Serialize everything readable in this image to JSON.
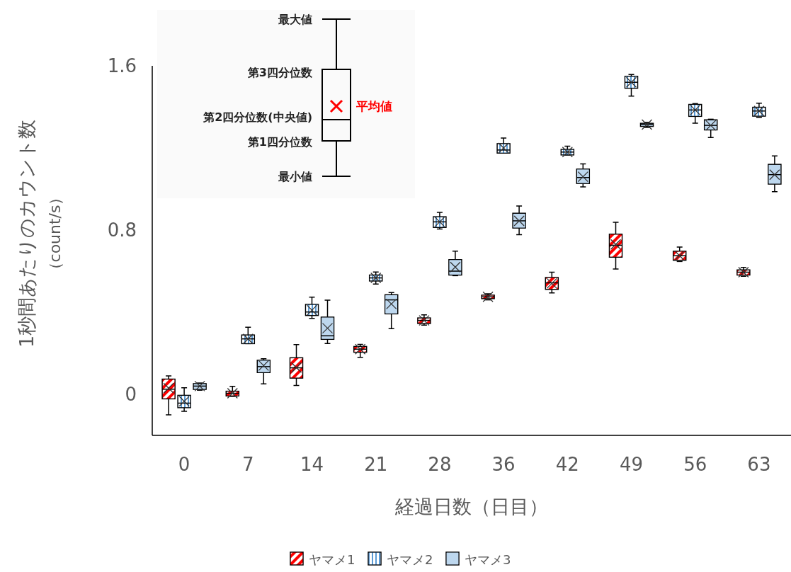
{
  "chart_data": {
    "type": "box",
    "xlabel": "経過日数（日目）",
    "ylabel": "1秒間あたりのカウント数（count/s）",
    "categories": [
      "0",
      "7",
      "14",
      "21",
      "28",
      "36",
      "42",
      "49",
      "56",
      "63"
    ],
    "ylim": [
      -0.2,
      1.6
    ],
    "yticks": [
      0,
      0.8,
      1.6
    ],
    "grid": false,
    "legend": "bottom",
    "annotations": [
      "最大値",
      "第3四分位数",
      "第2四分位数(中央値)",
      "第1四分位数",
      "最小値",
      "平均値"
    ],
    "series": [
      {
        "name": "ヤマメ1",
        "color": "#ff0000",
        "boxes": [
          {
            "low": -0.1,
            "q1": -0.022,
            "median": 0.025,
            "q3": 0.074,
            "high": 0.09,
            "mean": 0.03
          },
          {
            "low": -0.01,
            "q1": -0.008,
            "median": 0.005,
            "q3": 0.015,
            "high": 0.039,
            "mean": 0.005
          },
          {
            "low": 0.043,
            "q1": 0.079,
            "median": 0.129,
            "q3": 0.178,
            "high": 0.242,
            "mean": 0.13
          },
          {
            "low": 0.18,
            "q1": 0.205,
            "median": 0.22,
            "q3": 0.233,
            "high": 0.243,
            "mean": 0.22
          },
          {
            "low": 0.337,
            "q1": 0.345,
            "median": 0.36,
            "q3": 0.372,
            "high": 0.387,
            "mean": 0.36
          },
          {
            "low": 0.46,
            "q1": 0.466,
            "median": 0.475,
            "q3": 0.483,
            "high": 0.49,
            "mean": 0.475
          },
          {
            "low": 0.494,
            "q1": 0.511,
            "median": 0.543,
            "q3": 0.569,
            "high": 0.595,
            "mean": 0.54
          },
          {
            "low": 0.61,
            "q1": 0.668,
            "median": 0.726,
            "q3": 0.78,
            "high": 0.838,
            "mean": 0.73
          },
          {
            "low": 0.647,
            "q1": 0.653,
            "median": 0.675,
            "q3": 0.697,
            "high": 0.717,
            "mean": 0.675
          },
          {
            "low": 0.575,
            "q1": 0.581,
            "median": 0.595,
            "q3": 0.606,
            "high": 0.618,
            "mean": 0.595
          }
        ]
      },
      {
        "name": "ヤマメ2",
        "color": "#5b9bd5",
        "boxes": [
          {
            "low": -0.083,
            "q1": -0.065,
            "median": -0.043,
            "q3": -0.005,
            "high": 0.032,
            "mean": -0.034
          },
          {
            "low": 0.247,
            "q1": 0.247,
            "median": 0.27,
            "q3": 0.289,
            "high": 0.327,
            "mean": 0.27
          },
          {
            "low": 0.37,
            "q1": 0.384,
            "median": 0.401,
            "q3": 0.438,
            "high": 0.473,
            "mean": 0.41
          },
          {
            "low": 0.537,
            "q1": 0.552,
            "median": 0.567,
            "q3": 0.581,
            "high": 0.596,
            "mean": 0.567
          },
          {
            "low": 0.805,
            "q1": 0.813,
            "median": 0.84,
            "q3": 0.865,
            "high": 0.886,
            "mean": 0.84
          },
          {
            "low": 1.175,
            "q1": 1.175,
            "median": 1.19,
            "q3": 1.221,
            "high": 1.248,
            "mean": 1.2
          },
          {
            "low": 1.166,
            "q1": 1.166,
            "median": 1.18,
            "q3": 1.193,
            "high": 1.209,
            "mean": 1.18
          },
          {
            "low": 1.453,
            "q1": 1.491,
            "median": 1.52,
            "q3": 1.549,
            "high": 1.558,
            "mean": 1.52
          },
          {
            "low": 1.321,
            "q1": 1.354,
            "median": 1.385,
            "q3": 1.412,
            "high": 1.416,
            "mean": 1.385
          },
          {
            "low": 1.349,
            "q1": 1.355,
            "median": 1.38,
            "q3": 1.398,
            "high": 1.418,
            "mean": 1.38
          }
        ]
      },
      {
        "name": "ヤマメ3",
        "color": "#bdd7ee",
        "boxes": [
          {
            "low": 0.02,
            "q1": 0.024,
            "median": 0.04,
            "q3": 0.052,
            "high": 0.055,
            "mean": 0.04
          },
          {
            "low": 0.051,
            "q1": 0.106,
            "median": 0.135,
            "q3": 0.166,
            "high": 0.173,
            "mean": 0.14
          },
          {
            "low": 0.247,
            "q1": 0.268,
            "median": 0.285,
            "q3": 0.376,
            "high": 0.459,
            "mean": 0.322
          },
          {
            "low": 0.32,
            "q1": 0.392,
            "median": 0.46,
            "q3": 0.485,
            "high": 0.496,
            "mean": 0.44
          },
          {
            "low": 0.578,
            "q1": 0.581,
            "median": 0.6,
            "q3": 0.656,
            "high": 0.697,
            "mean": 0.62
          },
          {
            "low": 0.778,
            "q1": 0.81,
            "median": 0.845,
            "q3": 0.882,
            "high": 0.917,
            "mean": 0.845
          },
          {
            "low": 1.01,
            "q1": 1.027,
            "median": 1.056,
            "q3": 1.097,
            "high": 1.122,
            "mean": 1.06
          },
          {
            "low": 1.3,
            "q1": 1.305,
            "median": 1.314,
            "q3": 1.32,
            "high": 1.325,
            "mean": 1.314
          },
          {
            "low": 1.251,
            "q1": 1.288,
            "median": 1.31,
            "q3": 1.337,
            "high": 1.34,
            "mean": 1.31
          },
          {
            "low": 0.987,
            "q1": 1.024,
            "median": 1.07,
            "q3": 1.12,
            "high": 1.161,
            "mean": 1.07
          }
        ]
      }
    ]
  }
}
